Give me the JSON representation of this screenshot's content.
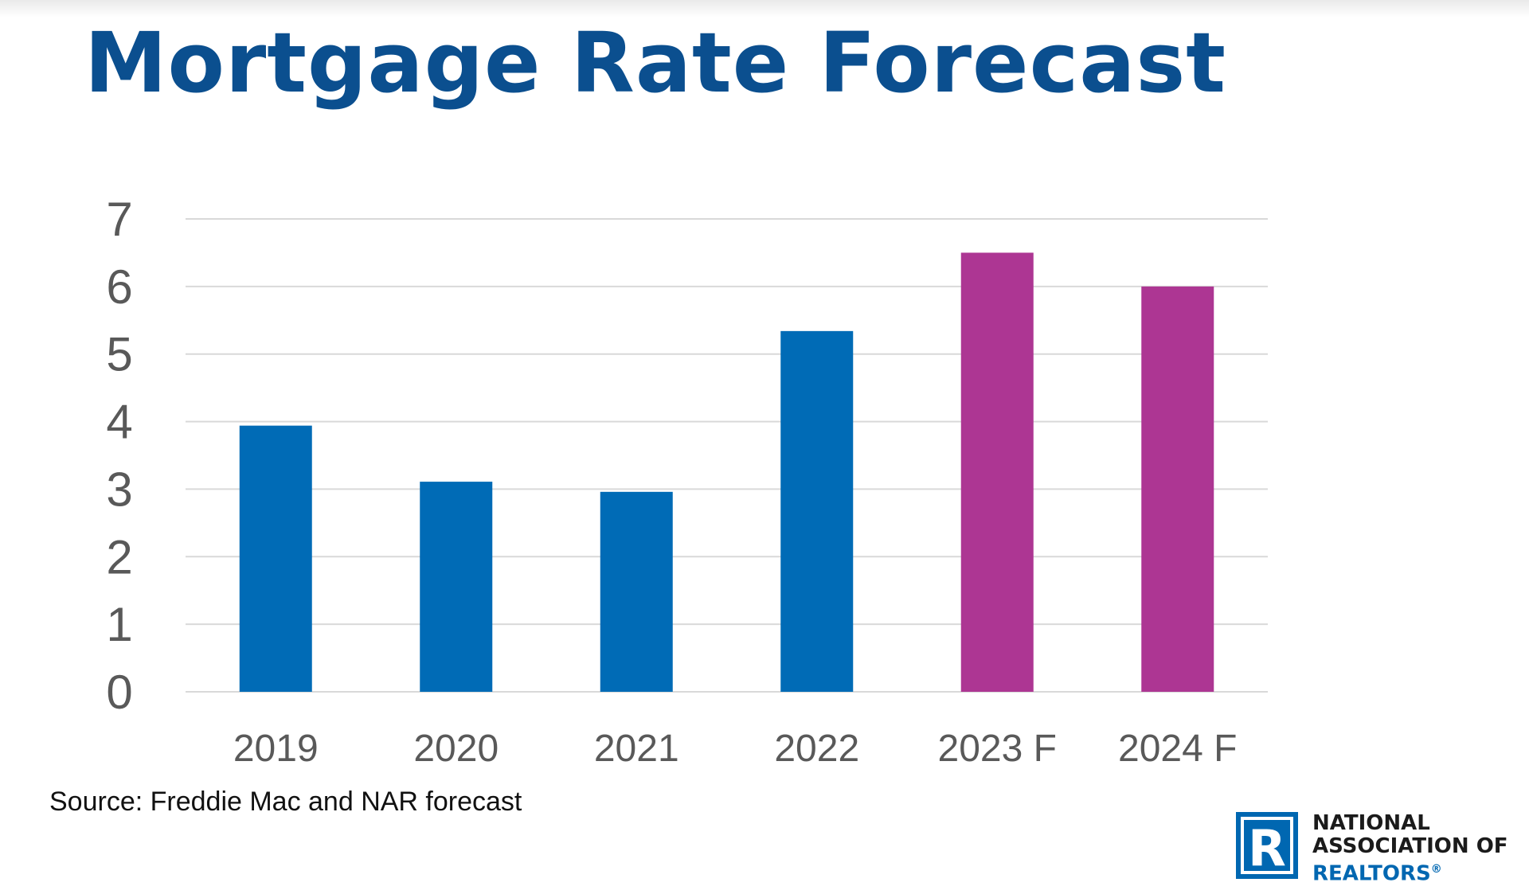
{
  "page": {
    "title": "Mortgage Rate Forecast",
    "source": "Source: Freddie Mac and NAR forecast",
    "logo": {
      "letter": "R",
      "line1": "NATIONAL",
      "line2": "ASSOCIATION OF",
      "line3": "REALTORS",
      "reg": "®"
    }
  },
  "colors": {
    "title": "#0b4f8f",
    "actual": "#006bb6",
    "forecast": "#ad3693",
    "grid": "#d9d9d9",
    "tick": "#595959",
    "logo_blue": "#0067b1"
  },
  "chart_data": {
    "type": "bar",
    "title": "Mortgage Rate Forecast",
    "categories": [
      "2019",
      "2020",
      "2021",
      "2022",
      "2023 F",
      "2024 F"
    ],
    "values": [
      3.94,
      3.11,
      2.96,
      5.34,
      6.5,
      6.0
    ],
    "bar_types": [
      "actual",
      "actual",
      "actual",
      "actual",
      "forecast",
      "forecast"
    ],
    "yticks": [
      "0",
      "1",
      "2",
      "3",
      "4",
      "5",
      "6",
      "7"
    ],
    "ylim": [
      0,
      7
    ],
    "xlabel": "",
    "ylabel": "",
    "grid": true,
    "legend": "none"
  }
}
